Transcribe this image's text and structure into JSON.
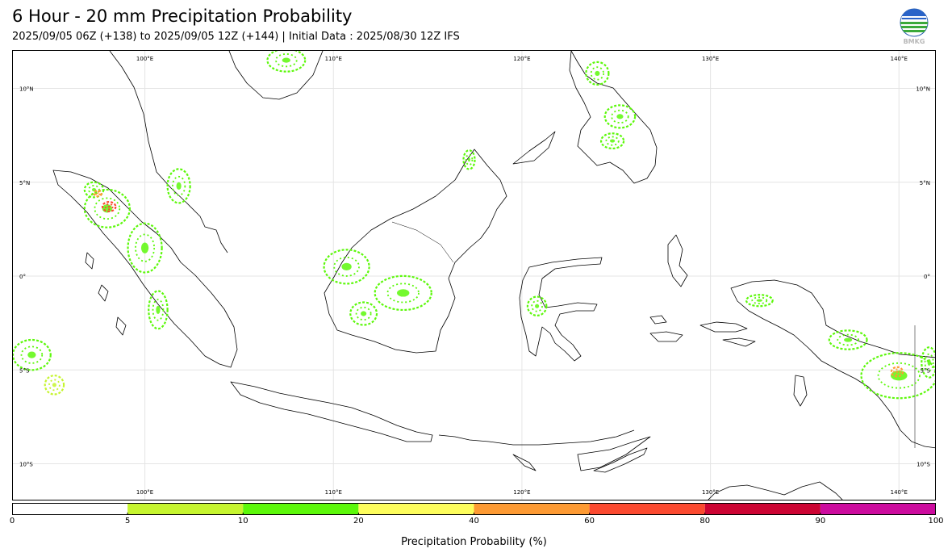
{
  "header": {
    "title": "6 Hour - 20 mm Precipitation Probability",
    "subtitle": "2025/09/05 06Z (+138) to 2025/09/05 12Z (+144) | Initial Data : 2025/08/30 12Z IFS",
    "logo_text": "BMKG"
  },
  "map": {
    "projection": "equirectangular",
    "lon_range": [
      93,
      142
    ],
    "lat_range": [
      -12,
      12
    ],
    "lon_ticks": [
      {
        "value": 100,
        "label": "100°E"
      },
      {
        "value": 110,
        "label": "110°E"
      },
      {
        "value": 120,
        "label": "120°E"
      },
      {
        "value": 130,
        "label": "130°E"
      },
      {
        "value": 140,
        "label": "140°E"
      }
    ],
    "lat_ticks": [
      {
        "value": 10,
        "label": "10°N"
      },
      {
        "value": 5,
        "label": "5°N"
      },
      {
        "value": 0,
        "label": "0°"
      },
      {
        "value": -5,
        "label": "5°S"
      },
      {
        "value": -10,
        "label": "10°S"
      }
    ],
    "grid": true,
    "coastline_color": "#000000",
    "precip_areas": [
      {
        "name": "north-sumatra",
        "lon": 98.0,
        "lat": 3.6,
        "rx": 1.2,
        "ry": 1.0,
        "level": "10-20"
      },
      {
        "name": "north-sumatra-core",
        "lon": 98.1,
        "lat": 3.7,
        "rx": 0.35,
        "ry": 0.25,
        "level": "60-80"
      },
      {
        "name": "aceh",
        "lon": 97.3,
        "lat": 4.6,
        "rx": 0.5,
        "ry": 0.4,
        "level": "10-20"
      },
      {
        "name": "aceh-core",
        "lon": 97.5,
        "lat": 4.4,
        "rx": 0.2,
        "ry": 0.15,
        "level": "40-60"
      },
      {
        "name": "central-sumatra",
        "lon": 100.0,
        "lat": 1.5,
        "rx": 0.9,
        "ry": 1.3,
        "level": "10-20"
      },
      {
        "name": "west-sumatra",
        "lon": 100.7,
        "lat": -1.8,
        "rx": 0.5,
        "ry": 1.0,
        "level": "10-20"
      },
      {
        "name": "malay-peninsula",
        "lon": 101.8,
        "lat": 4.8,
        "rx": 0.6,
        "ry": 0.9,
        "level": "10-20"
      },
      {
        "name": "indian-ocean-west",
        "lon": 94.0,
        "lat": -4.2,
        "rx": 1.0,
        "ry": 0.8,
        "level": "10-20"
      },
      {
        "name": "indian-ocean-south",
        "lon": 95.2,
        "lat": -5.8,
        "rx": 0.5,
        "ry": 0.5,
        "level": "5-10"
      },
      {
        "name": "west-kalimantan",
        "lon": 110.7,
        "lat": 0.5,
        "rx": 1.2,
        "ry": 0.9,
        "level": "10-20"
      },
      {
        "name": "central-kalimantan",
        "lon": 113.7,
        "lat": -0.9,
        "rx": 1.5,
        "ry": 0.9,
        "level": "10-20"
      },
      {
        "name": "south-kalimantan",
        "lon": 111.6,
        "lat": -2.0,
        "rx": 0.7,
        "ry": 0.6,
        "level": "10-20"
      },
      {
        "name": "sabah",
        "lon": 117.2,
        "lat": 6.2,
        "rx": 0.3,
        "ry": 0.5,
        "level": "10-20"
      },
      {
        "name": "indochina",
        "lon": 107.5,
        "lat": 11.5,
        "rx": 1.0,
        "ry": 0.6,
        "level": "10-20"
      },
      {
        "name": "luzon-south",
        "lon": 124.0,
        "lat": 10.8,
        "rx": 0.6,
        "ry": 0.6,
        "level": "10-20"
      },
      {
        "name": "samar",
        "lon": 125.2,
        "lat": 8.5,
        "rx": 0.8,
        "ry": 0.6,
        "level": "10-20"
      },
      {
        "name": "mindanao",
        "lon": 124.8,
        "lat": 7.2,
        "rx": 0.6,
        "ry": 0.4,
        "level": "10-20"
      },
      {
        "name": "sulawesi-central",
        "lon": 120.8,
        "lat": -1.6,
        "rx": 0.5,
        "ry": 0.5,
        "level": "10-20"
      },
      {
        "name": "papua-bird-head",
        "lon": 132.6,
        "lat": -1.3,
        "rx": 0.7,
        "ry": 0.3,
        "level": "10-20"
      },
      {
        "name": "papua-east",
        "lon": 140.0,
        "lat": -5.3,
        "rx": 2.0,
        "ry": 1.2,
        "level": "10-20"
      },
      {
        "name": "papua-east-core",
        "lon": 139.9,
        "lat": -5.1,
        "rx": 0.3,
        "ry": 0.25,
        "level": "40-60"
      },
      {
        "name": "papua-central",
        "lon": 137.3,
        "lat": -3.4,
        "rx": 1.0,
        "ry": 0.5,
        "level": "10-20"
      },
      {
        "name": "png-edge",
        "lon": 141.6,
        "lat": -4.6,
        "rx": 0.4,
        "ry": 0.8,
        "level": "10-20"
      }
    ]
  },
  "colorbar": {
    "label": "Precipitation Probability (%)",
    "tick_labels": [
      "0",
      "5",
      "10",
      "20",
      "40",
      "60",
      "80",
      "90",
      "100"
    ],
    "bins": [
      {
        "range": "0-5",
        "color": "#ffffff"
      },
      {
        "range": "5-10",
        "color": "#c6f52f"
      },
      {
        "range": "10-20",
        "color": "#5cf80a"
      },
      {
        "range": "20-40",
        "color": "#fdfd5c"
      },
      {
        "range": "40-60",
        "color": "#fd9a33"
      },
      {
        "range": "60-80",
        "color": "#fb4a30"
      },
      {
        "range": "80-90",
        "color": "#cc0433"
      },
      {
        "range": "90-100",
        "color": "#cc0b9e"
      }
    ]
  }
}
